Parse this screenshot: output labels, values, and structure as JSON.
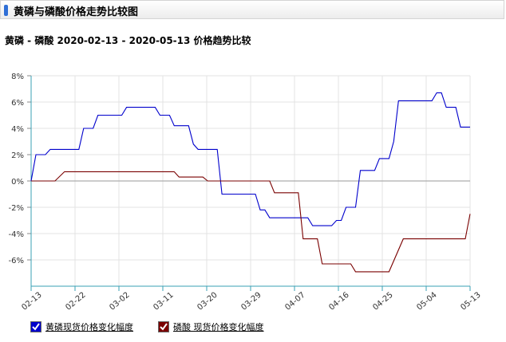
{
  "header": {
    "title": "黄磷与磷酸价格走势比较图",
    "accent_color": "#2f6fd6"
  },
  "chart_data": {
    "type": "line",
    "title": "黄磷 - 磷酸 2020-02-13 - 2020-05-13 价格趋势比较",
    "xlabel": "",
    "ylabel": "",
    "x_ticks": [
      "02-13",
      "02-22",
      "03-02",
      "03-11",
      "03-20",
      "03-29",
      "04-07",
      "04-16",
      "04-25",
      "05-04",
      "05-13"
    ],
    "y_ticks": [
      "8%",
      "6%",
      "4%",
      "2%",
      "0%",
      "-2%",
      "-4%",
      "-6%"
    ],
    "ylim": [
      -8,
      8
    ],
    "grid": true,
    "legend_position": "bottom-left",
    "series": [
      {
        "name": "黄磷现货价格变化幅度",
        "color": "#0000cc",
        "points": [
          [
            0,
            0
          ],
          [
            1,
            2
          ],
          [
            3,
            2
          ],
          [
            4,
            2.4
          ],
          [
            10,
            2.4
          ],
          [
            11,
            4
          ],
          [
            13,
            4
          ],
          [
            14,
            5
          ],
          [
            19,
            5
          ],
          [
            20,
            5.6
          ],
          [
            26,
            5.6
          ],
          [
            27,
            5
          ],
          [
            29,
            5
          ],
          [
            30,
            4.2
          ],
          [
            33,
            4.2
          ],
          [
            34,
            2.8
          ],
          [
            35,
            2.4
          ],
          [
            39,
            2.4
          ],
          [
            40,
            -1
          ],
          [
            47,
            -1
          ],
          [
            48,
            -2.2
          ],
          [
            49,
            -2.2
          ],
          [
            50,
            -2.8
          ],
          [
            58,
            -2.8
          ],
          [
            59,
            -3.4
          ],
          [
            63,
            -3.4
          ],
          [
            64,
            -3
          ],
          [
            65,
            -3
          ],
          [
            66,
            -2
          ],
          [
            68,
            -2
          ],
          [
            69,
            0.8
          ],
          [
            72,
            0.8
          ],
          [
            73,
            1.7
          ],
          [
            75,
            1.7
          ],
          [
            76,
            3
          ],
          [
            77,
            6.1
          ],
          [
            84,
            6.1
          ],
          [
            85,
            6.7
          ],
          [
            86,
            6.7
          ],
          [
            87,
            5.6
          ],
          [
            89,
            5.6
          ],
          [
            90,
            4.1
          ],
          [
            92,
            4.1
          ]
        ]
      },
      {
        "name": "磷酸 现货价格变化幅度",
        "color": "#7a0000",
        "points": [
          [
            0,
            0
          ],
          [
            5,
            0
          ],
          [
            7,
            0.7
          ],
          [
            30,
            0.7
          ],
          [
            31,
            0.3
          ],
          [
            36,
            0.3
          ],
          [
            37,
            0
          ],
          [
            50,
            0
          ],
          [
            51,
            -0.9
          ],
          [
            56,
            -0.9
          ],
          [
            57,
            -4.4
          ],
          [
            60,
            -4.4
          ],
          [
            61,
            -6.3
          ],
          [
            67,
            -6.3
          ],
          [
            68,
            -6.9
          ],
          [
            75,
            -6.9
          ],
          [
            78,
            -4.4
          ],
          [
            91,
            -4.4
          ],
          [
            92,
            -2.5
          ]
        ]
      }
    ]
  },
  "legend": [
    {
      "label": "黄磷现货价格变化幅度",
      "checked": true,
      "color": "#0000cc"
    },
    {
      "label": "磷酸 现货价格变化幅度",
      "checked": true,
      "color": "#7a0000"
    }
  ]
}
